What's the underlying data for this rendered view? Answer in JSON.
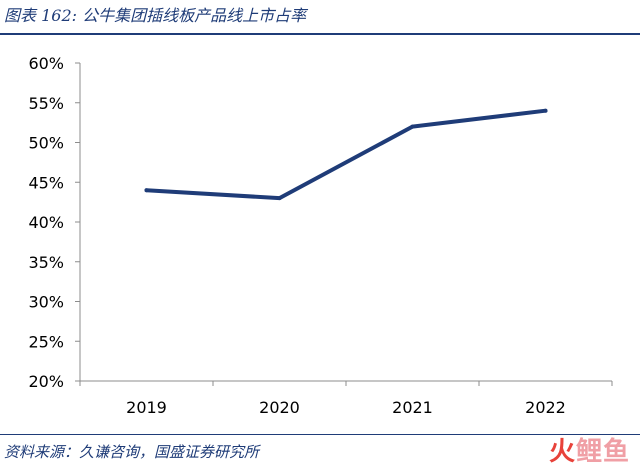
{
  "header": {
    "title": "图表 162: 公牛集团插线板产品线上市占率"
  },
  "footer": {
    "source": "资料来源：久谦咨询，国盛证券研究所",
    "watermark_part1": "火",
    "watermark_part2": "鲤鱼"
  },
  "chart_data": {
    "type": "line",
    "title": "",
    "xlabel": "",
    "ylabel": "",
    "categories": [
      "2019",
      "2020",
      "2021",
      "2022"
    ],
    "series": [
      {
        "values": [
          44,
          43,
          52,
          54
        ]
      }
    ],
    "ylim": [
      20,
      60
    ],
    "yticks": [
      "20%",
      "25%",
      "30%",
      "35%",
      "40%",
      "45%",
      "50%",
      "55%",
      "60%"
    ],
    "grid": false,
    "line_color": "#1f3c78"
  }
}
